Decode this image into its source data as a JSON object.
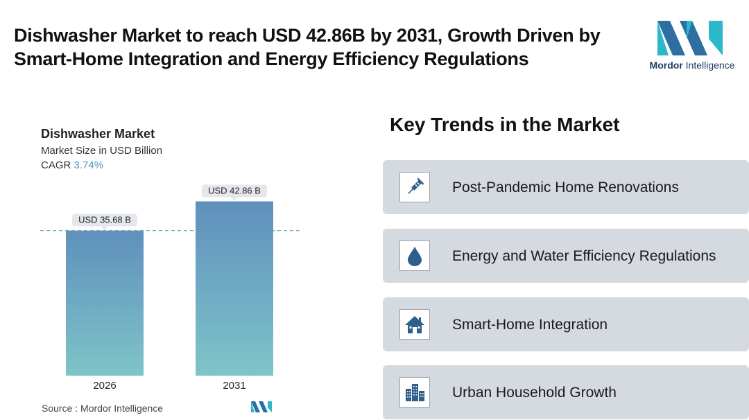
{
  "header": {
    "headline": "Dishwasher Market to reach USD 42.86B by 2031, Growth Driven by Smart-Home Integration and Energy Efficiency Regulations"
  },
  "logo": {
    "brand": "Mordor",
    "suffix": "Intelligence",
    "colors": [
      "#2e6fa3",
      "#2bb8c9"
    ]
  },
  "chart_data": {
    "type": "bar",
    "title": "Dishwasher Market",
    "subtitle": "Market Size in USD Billion",
    "cagr_label": "CAGR",
    "cagr_value": "3.74%",
    "categories": [
      "2026",
      "2031"
    ],
    "values": [
      35.68,
      42.86
    ],
    "data_labels": [
      "USD 35.68 B",
      "USD 42.86 B"
    ],
    "ylim": [
      0,
      45
    ],
    "reference_line": 35.68,
    "grid": false,
    "xlabel": "",
    "ylabel": "",
    "colors": {
      "bar_top": "#5f90bd",
      "bar_bottom": "#7fc4c8",
      "dash": "#5f9fb0"
    }
  },
  "source": {
    "label": "Source :",
    "name": "Mordor Intelligence"
  },
  "trends": {
    "title": "Key Trends in the Market",
    "items": [
      {
        "label": "Post-Pandemic Home Renovations",
        "icon": "syringe-icon"
      },
      {
        "label": "Energy and Water Efficiency Regulations",
        "icon": "water-drop-icon"
      },
      {
        "label": "Smart-Home Integration",
        "icon": "house-icon"
      },
      {
        "label": "Urban Household Growth",
        "icon": "city-buildings-icon"
      }
    ]
  }
}
